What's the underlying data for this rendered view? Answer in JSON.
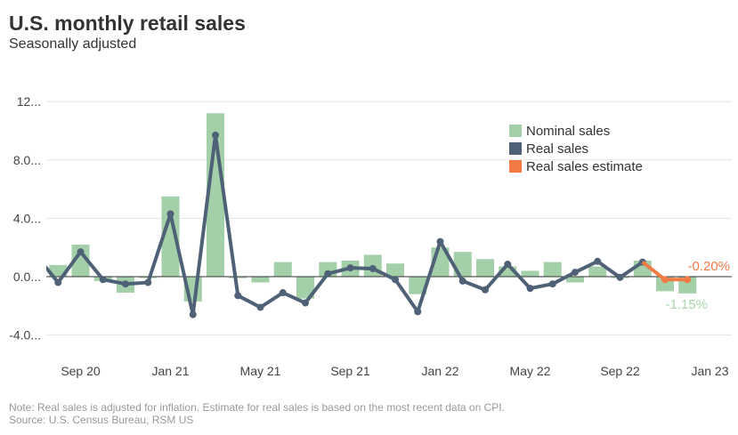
{
  "title": "U.S. monthly retail sales",
  "subtitle": "Seasonally adjusted",
  "note": "Note: Real sales is adjusted for inflation. Estimate for real sales is based on the most recent data on CPI.",
  "source": "Source: U.S. Census Bureau, RSM US",
  "chart_data": {
    "type": "bar+line",
    "months": [
      "Jul 20",
      "Aug 20",
      "Sep 20",
      "Oct 20",
      "Nov 20",
      "Dec 20",
      "Jan 21",
      "Feb 21",
      "Mar 21",
      "Apr 21",
      "May 21",
      "Jun 21",
      "Jul 21",
      "Aug 21",
      "Sep 21",
      "Oct 21",
      "Nov 21",
      "Dec 21",
      "Jan 22",
      "Feb 22",
      "Mar 22",
      "Apr 22",
      "May 22",
      "Jun 22",
      "Jul 22",
      "Aug 22",
      "Sep 22",
      "Oct 22",
      "Nov 22",
      "Dec 22"
    ],
    "x_tick_labels": [
      {
        "label": "Sep 20",
        "month": "Sep 20"
      },
      {
        "label": "Jan 21",
        "month": "Jan 21"
      },
      {
        "label": "May 21",
        "month": "May 21"
      },
      {
        "label": "Sep 21",
        "month": "Sep 21"
      },
      {
        "label": "Jan 22",
        "month": "Jan 22"
      },
      {
        "label": "May 22",
        "month": "May 22"
      },
      {
        "label": "Sep 22",
        "month": "Sep 22"
      },
      {
        "label": "Jan 23",
        "month": "Jan 23"
      }
    ],
    "y_ticks": [
      {
        "value": 12,
        "label": "12..."
      },
      {
        "value": 8,
        "label": "8.0..."
      },
      {
        "value": 4,
        "label": "4.0..."
      },
      {
        "value": 0,
        "label": "0.0..."
      },
      {
        "value": -4,
        "label": "-4.0..."
      }
    ],
    "ylim": [
      -5.5,
      12.5
    ],
    "grid": true,
    "legend_position": "top-right",
    "series": [
      {
        "name": "Nominal sales",
        "kind": "bar",
        "color": "#a3cfa9",
        "values": [
          null,
          0.8,
          2.2,
          -0.3,
          -1.1,
          -0.1,
          5.5,
          -1.7,
          11.2,
          -0.1,
          -0.4,
          1.0,
          -1.5,
          1.0,
          1.1,
          1.5,
          0.9,
          -1.2,
          2.0,
          1.7,
          1.2,
          0.7,
          0.4,
          1.0,
          -0.4,
          0.7,
          -0.1,
          1.1,
          -1.0,
          -1.15
        ]
      },
      {
        "name": "Real sales",
        "kind": "line",
        "color": "#4e6176",
        "values": [
          1.5,
          -0.4,
          1.7,
          -0.2,
          -0.5,
          -0.4,
          4.3,
          -2.6,
          9.7,
          -1.3,
          -2.1,
          -1.1,
          -1.8,
          0.2,
          0.6,
          0.55,
          -0.2,
          -2.4,
          2.4,
          -0.3,
          -0.9,
          0.85,
          -0.8,
          -0.5,
          0.3,
          1.05,
          -0.05,
          1.0,
          null,
          null
        ]
      },
      {
        "name": "Real sales estimate",
        "kind": "line",
        "color": "#f27b45",
        "values": [
          null,
          null,
          null,
          null,
          null,
          null,
          null,
          null,
          null,
          null,
          null,
          null,
          null,
          null,
          null,
          null,
          null,
          null,
          null,
          null,
          null,
          null,
          null,
          null,
          null,
          null,
          null,
          1.0,
          -0.2,
          -0.2
        ]
      }
    ],
    "annotations": [
      {
        "text": "-0.20%",
        "series": "Real sales estimate",
        "month": "Dec 22",
        "color": "#f27b45"
      },
      {
        "text": "-1.15%",
        "series": "Nominal sales",
        "month": "Dec 22",
        "color": "#a8d5a8"
      }
    ]
  }
}
